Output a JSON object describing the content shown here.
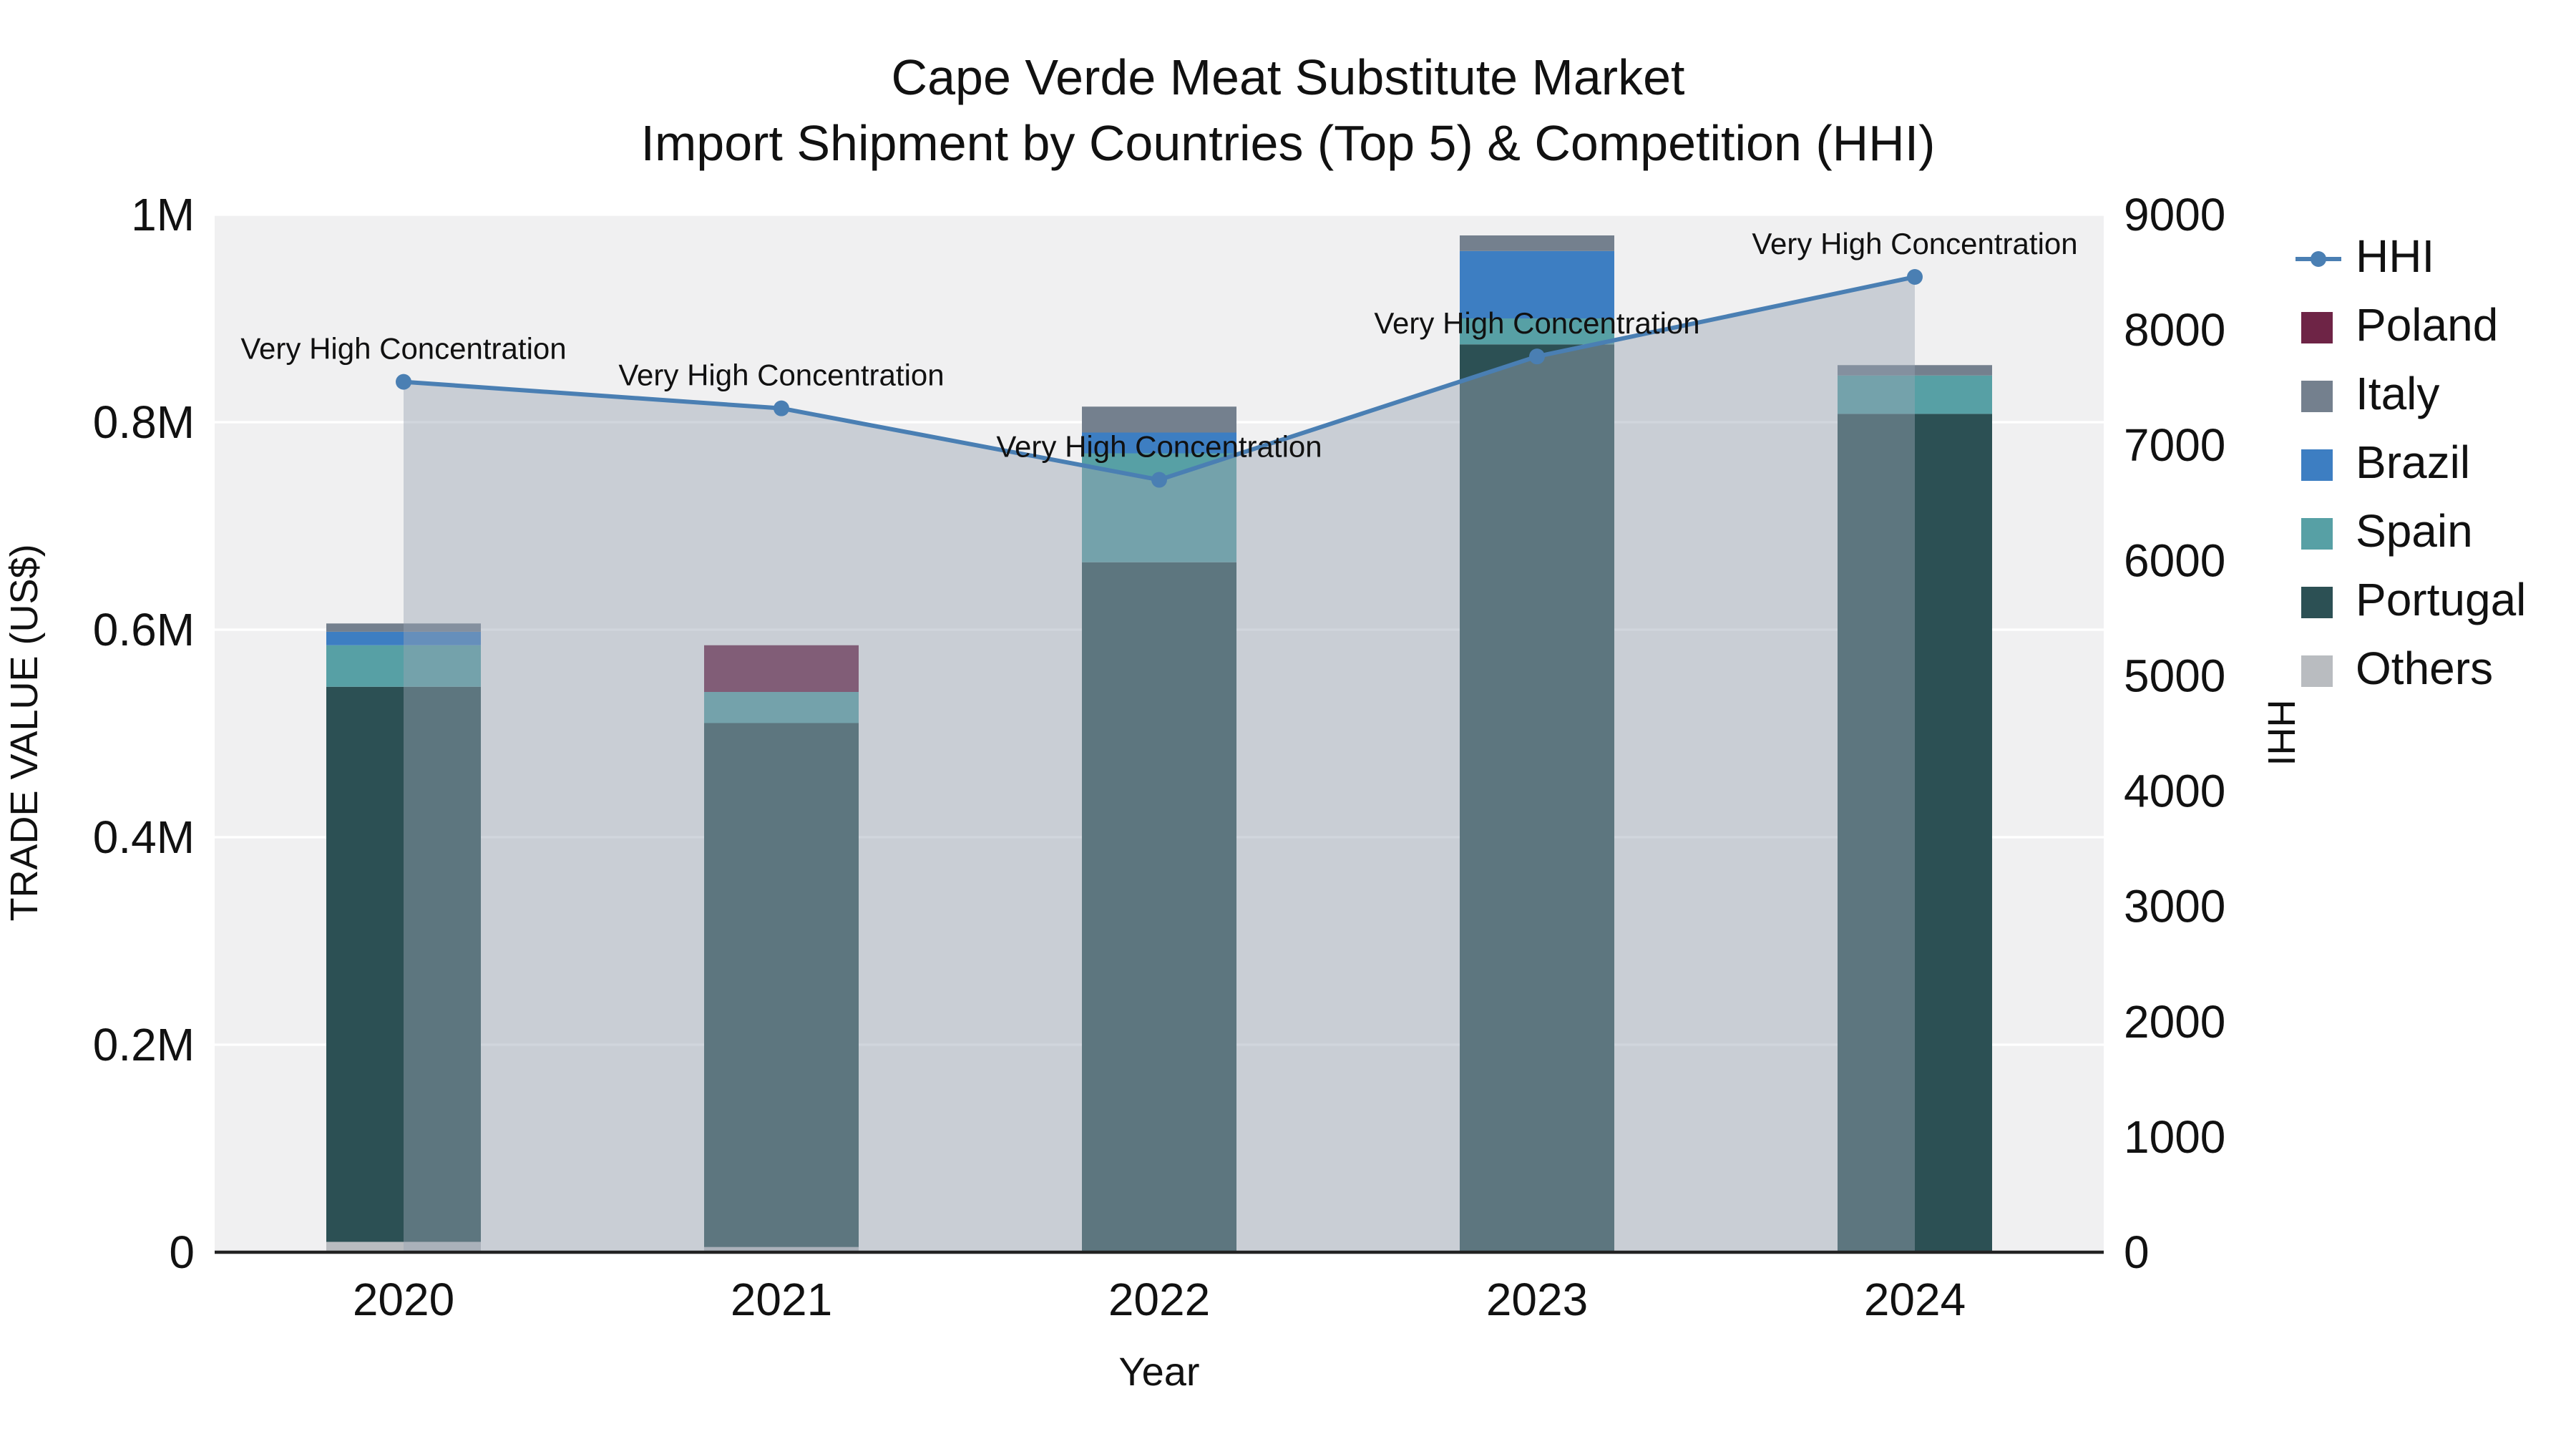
{
  "chart_data": {
    "type": "bar",
    "subtype": "stacked-bars-with-hhi-line-area",
    "title_line1": "Cape Verde Meat Substitute Market",
    "title_line2": "Import Shipment by Countries (Top 5) & Competition (HHI)",
    "xlabel": "Year",
    "ylabel_left": "TRADE VALUE (US$)",
    "ylabel_right": "HHI",
    "categories": [
      "2020",
      "2021",
      "2022",
      "2023",
      "2024"
    ],
    "bar_series": [
      {
        "name": "Others",
        "color": "#b9bcc0",
        "values": [
          10000,
          5000,
          0,
          0,
          0
        ]
      },
      {
        "name": "Portugal",
        "color": "#2c5054",
        "values": [
          535000,
          505000,
          665000,
          875000,
          808000
        ]
      },
      {
        "name": "Spain",
        "color": "#57a0a5",
        "values": [
          40000,
          30000,
          105000,
          25000,
          37000
        ]
      },
      {
        "name": "Brazil",
        "color": "#3d7ec2",
        "values": [
          13000,
          0,
          20000,
          65000,
          0
        ]
      },
      {
        "name": "Italy",
        "color": "#74808e",
        "values": [
          8000,
          0,
          25000,
          15000,
          10000
        ]
      },
      {
        "name": "Poland",
        "color": "#6e2446",
        "values": [
          0,
          45000,
          0,
          0,
          0
        ]
      }
    ],
    "line_series": {
      "name": "HHI",
      "color": "#4a7fb3",
      "area_color": "#9aa5b4",
      "area_opacity": 0.45,
      "values": [
        7550,
        7320,
        6700,
        7770,
        8460
      ]
    },
    "annotations": [
      "Very High Concentration",
      "Very High Concentration",
      "Very High Concentration",
      "Very High Concentration",
      "Very High Concentration"
    ],
    "left_axis": {
      "max": 1000000,
      "tick_values": [
        0,
        200000,
        400000,
        600000,
        800000,
        1000000
      ],
      "ticks": [
        "0",
        "0.2M",
        "0.4M",
        "0.6M",
        "0.8M",
        "1M"
      ]
    },
    "right_axis": {
      "max": 9000,
      "tick_step": 1000
    },
    "legend": [
      "HHI",
      "Poland",
      "Italy",
      "Brazil",
      "Spain",
      "Portugal",
      "Others"
    ],
    "plot_background": "#f0f0f1",
    "gridline_color": "#ffffff"
  }
}
